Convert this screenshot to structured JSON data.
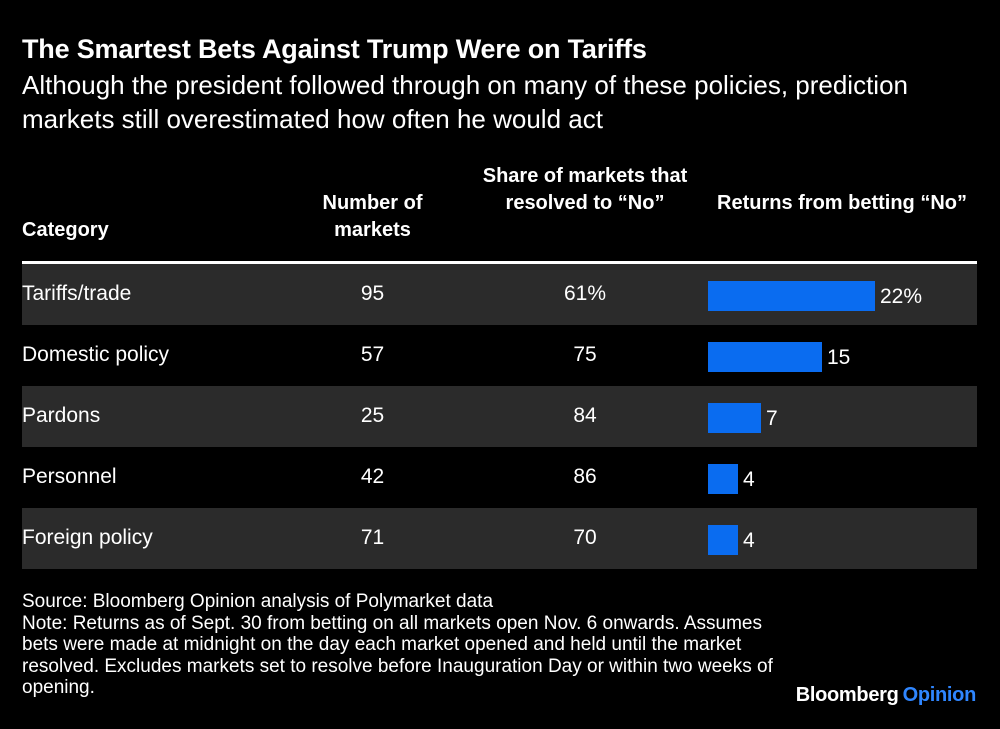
{
  "header": {
    "title": "The Smartest Bets Against Trump Were on Tariffs",
    "subtitle": "Although the president followed through on many of these policies, prediction markets still overestimated how often he would act"
  },
  "columns": {
    "category": "Category",
    "number": "Number of markets",
    "share": "Share of markets that resolved to “No”",
    "returns": "Returns from betting “No”"
  },
  "rows": [
    {
      "category": "Tariffs/trade",
      "number": "95",
      "share": "61%",
      "returns_label": "22%"
    },
    {
      "category": "Domestic policy",
      "number": "57",
      "share": "75",
      "returns_label": "15"
    },
    {
      "category": "Pardons",
      "number": "25",
      "share": "84",
      "returns_label": "7"
    },
    {
      "category": "Personnel",
      "number": "42",
      "share": "86",
      "returns_label": "4"
    },
    {
      "category": "Foreign policy",
      "number": "71",
      "share": "70",
      "returns_label": "4"
    }
  ],
  "chart_data": {
    "type": "table",
    "title": "The Smartest Bets Against Trump Were on Tariffs",
    "subtitle": "Although the president followed through on many of these policies, prediction markets still overestimated how often he would act",
    "categories": [
      "Tariffs/trade",
      "Domestic policy",
      "Pardons",
      "Personnel",
      "Foreign policy"
    ],
    "series": [
      {
        "name": "Number of markets",
        "values": [
          95,
          57,
          25,
          42,
          71
        ]
      },
      {
        "name": "Share of markets that resolved to “No” (%)",
        "values": [
          61,
          75,
          84,
          86,
          70
        ]
      },
      {
        "name": "Returns from betting “No” (%)",
        "values": [
          22,
          15,
          7,
          4,
          4
        ],
        "display": "bar"
      }
    ],
    "bar_scale_max": 22,
    "bar_color": "#0a6cf0"
  },
  "footer": {
    "source": "Source: Bloomberg Opinion analysis of Polymarket data",
    "note": "Note: Returns as of Sept. 30 from betting on all markets open Nov. 6 onwards. Assumes bets were made at midnight on the day each market opened and held until the market resolved. Excludes markets set to resolve before Inauguration Day or within two weeks of opening.",
    "brand_main": "Bloomberg",
    "brand_accent": "Opinion"
  },
  "colors": {
    "background": "#000000",
    "row_shade": "#2b2b2b",
    "bar": "#0a6cf0",
    "brand_accent": "#2f86ff"
  }
}
